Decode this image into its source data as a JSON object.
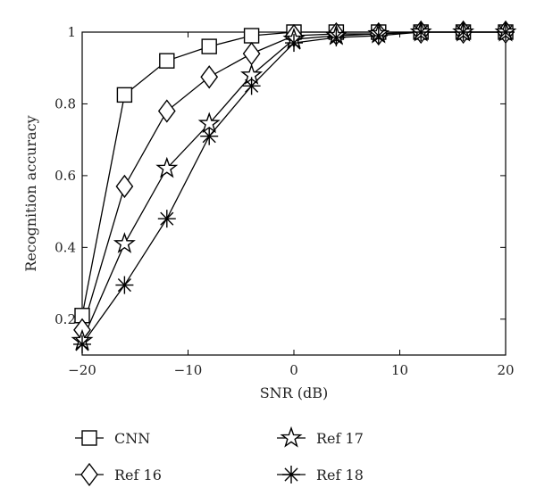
{
  "chart_data": {
    "type": "line",
    "xlabel": "SNR (dB)",
    "ylabel": "Recognition accuracy",
    "xlim": [
      -20,
      20
    ],
    "ylim": [
      0.1,
      1.0
    ],
    "xticks": [
      -20,
      -10,
      0,
      10,
      20
    ],
    "xtick_labels": [
      "−20",
      "−10",
      "0",
      "10",
      "20"
    ],
    "yticks": [
      0.2,
      0.4,
      0.6,
      0.8,
      1.0
    ],
    "ytick_labels": [
      "0.2",
      "0.4",
      "0.6",
      "0.8",
      "1"
    ],
    "grid": false,
    "legend_position": "bottom",
    "x": [
      -20,
      -16,
      -12,
      -8,
      -4,
      0,
      4,
      8,
      12,
      16,
      20
    ],
    "series": [
      {
        "name": "CNN",
        "marker": "square",
        "values": [
          0.21,
          0.825,
          0.92,
          0.96,
          0.99,
          1.0,
          1.0,
          1.0,
          1.0,
          1.0,
          1.0
        ]
      },
      {
        "name": "Ref 16",
        "marker": "diamond",
        "values": [
          0.17,
          0.57,
          0.78,
          0.875,
          0.94,
          0.99,
          0.995,
          0.995,
          1.0,
          1.0,
          1.0
        ]
      },
      {
        "name": "Ref 17",
        "marker": "star",
        "values": [
          0.14,
          0.41,
          0.62,
          0.745,
          0.88,
          0.98,
          0.99,
          0.995,
          1.0,
          1.0,
          1.0
        ]
      },
      {
        "name": "Ref 18",
        "marker": "asterisk",
        "values": [
          0.13,
          0.295,
          0.48,
          0.71,
          0.85,
          0.97,
          0.985,
          0.99,
          1.0,
          1.0,
          1.0
        ]
      }
    ]
  }
}
